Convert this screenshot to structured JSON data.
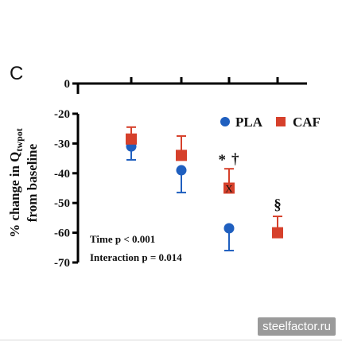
{
  "panel_label": "C",
  "watermark": "steelfactor.ru",
  "chart_data": {
    "type": "scatter",
    "ylabel": "% change in Q",
    "ylabel_sub": "twpot",
    "ylabel_line2": "from baseline",
    "ylim": [
      -70,
      0
    ],
    "yticks": [
      0,
      -20,
      -30,
      -40,
      -50,
      -60,
      -70
    ],
    "broken_axis": true,
    "legend": {
      "placement": "top-right"
    },
    "series": [
      {
        "name": "PLA",
        "marker": "circle",
        "color": "#1f5fbf",
        "error_direction": "down",
        "points": [
          {
            "mean": -31,
            "error": 4.5
          },
          {
            "mean": -39,
            "error": 7.5
          },
          {
            "mean": -58.5,
            "error": 7.5
          }
        ]
      },
      {
        "name": "CAF",
        "marker": "square",
        "color": "#d6402b",
        "error_direction": "up",
        "points": [
          {
            "mean": -28.5,
            "error": 4
          },
          {
            "mean": -34,
            "error": 6.5
          },
          {
            "mean": -45,
            "error": 6.5
          },
          {
            "mean": -60,
            "error": 5.5
          }
        ]
      }
    ],
    "significance": [
      {
        "text": "*",
        "series": "CAF",
        "point": 2
      },
      {
        "text": "†",
        "series": "CAF",
        "point": 2
      },
      {
        "text": "X",
        "series": "CAF",
        "point": 2
      },
      {
        "text": "§",
        "series": "CAF",
        "point": 3
      }
    ],
    "annotations": [
      "Time p < 0.001",
      "Interaction p = 0.014"
    ]
  }
}
